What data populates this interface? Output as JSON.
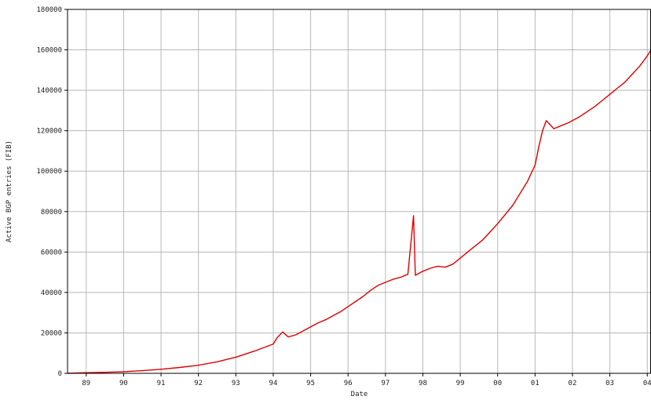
{
  "chart_data": {
    "type": "line",
    "title": "",
    "xlabel": "Date",
    "ylabel": "Active BGP entries (FIB)",
    "x_unit": "year",
    "xlim": [
      1988.5,
      2004.1
    ],
    "ylim": [
      0,
      180000
    ],
    "grid": true,
    "legend": "none",
    "line_color": "#dd0000",
    "grid_color": "#b8b8b8",
    "x_ticks": [
      {
        "value": 1989,
        "label": "89"
      },
      {
        "value": 1990,
        "label": "90"
      },
      {
        "value": 1991,
        "label": "91"
      },
      {
        "value": 1992,
        "label": "92"
      },
      {
        "value": 1993,
        "label": "93"
      },
      {
        "value": 1994,
        "label": "94"
      },
      {
        "value": 1995,
        "label": "95"
      },
      {
        "value": 1996,
        "label": "96"
      },
      {
        "value": 1997,
        "label": "97"
      },
      {
        "value": 1998,
        "label": "98"
      },
      {
        "value": 1999,
        "label": "99"
      },
      {
        "value": 2000,
        "label": "00"
      },
      {
        "value": 2001,
        "label": "01"
      },
      {
        "value": 2002,
        "label": "02"
      },
      {
        "value": 2003,
        "label": "03"
      },
      {
        "value": 2004,
        "label": "04"
      }
    ],
    "y_ticks": [
      {
        "value": 0,
        "label": "0"
      },
      {
        "value": 20000,
        "label": "20000"
      },
      {
        "value": 40000,
        "label": "40000"
      },
      {
        "value": 60000,
        "label": "60000"
      },
      {
        "value": 80000,
        "label": "80000"
      },
      {
        "value": 100000,
        "label": "100000"
      },
      {
        "value": 120000,
        "label": "120000"
      },
      {
        "value": 140000,
        "label": "140000"
      },
      {
        "value": 160000,
        "label": "160000"
      },
      {
        "value": 180000,
        "label": "180000"
      }
    ],
    "series": [
      {
        "x": [
          1988.5,
          1989.0,
          1989.5,
          1990.0,
          1990.5,
          1991.0,
          1991.5,
          1992.0,
          1992.5,
          1993.0,
          1993.5,
          1994.0,
          1994.1,
          1994.25,
          1994.4,
          1994.6,
          1994.8,
          1995.0,
          1995.2,
          1995.4,
          1995.6,
          1995.8,
          1996.0,
          1996.2,
          1996.4,
          1996.6,
          1996.8,
          1997.0,
          1997.2,
          1997.4,
          1997.6,
          1997.75,
          1997.8,
          1997.85,
          1998.0,
          1998.2,
          1998.4,
          1998.6,
          1998.8,
          1999.0,
          1999.2,
          1999.4,
          1999.6,
          1999.8,
          2000.0,
          2000.2,
          2000.4,
          2000.6,
          2000.8,
          2001.0,
          2001.1,
          2001.2,
          2001.3,
          2001.4,
          2001.5,
          2001.7,
          2001.9,
          2002.0,
          2002.2,
          2002.4,
          2002.6,
          2002.8,
          2003.0,
          2003.2,
          2003.4,
          2003.6,
          2003.8,
          2004.0,
          2004.1
        ],
        "values": [
          0,
          300,
          500,
          800,
          1300,
          2000,
          2900,
          4000,
          5700,
          8000,
          11000,
          14500,
          17500,
          20500,
          18000,
          19000,
          21000,
          23000,
          25000,
          26500,
          28500,
          30500,
          33000,
          35500,
          38000,
          41000,
          43500,
          45000,
          46500,
          47500,
          49000,
          78000,
          48500,
          49000,
          50500,
          52000,
          53000,
          52500,
          54000,
          57000,
          60000,
          63000,
          66000,
          70000,
          74000,
          78500,
          83000,
          89000,
          95000,
          103000,
          112000,
          120000,
          125000,
          123000,
          121000,
          122500,
          124000,
          125000,
          127000,
          129500,
          132000,
          135000,
          138000,
          141000,
          144000,
          148000,
          152000,
          157000,
          160000
        ]
      }
    ]
  }
}
